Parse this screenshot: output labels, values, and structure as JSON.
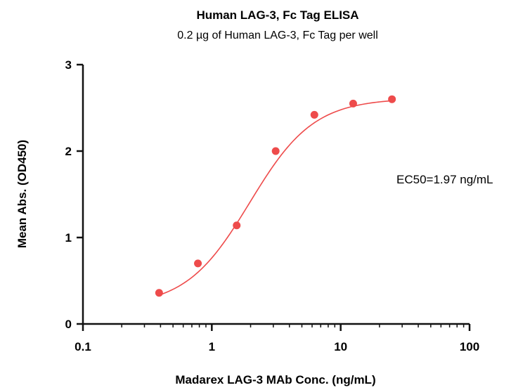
{
  "chart_data": {
    "type": "scatter",
    "title": "Human LAG-3, Fc Tag ELISA",
    "subtitle": "0.2 µg of Human LAG-3, Fc Tag per well",
    "xlabel": "Madarex LAG-3 MAb Conc. (ng/mL)",
    "ylabel": "Mean Abs. (OD450)",
    "x_scale": "log",
    "xlim": [
      0.1,
      100
    ],
    "ylim": [
      0,
      3
    ],
    "x_ticks": [
      0.1,
      1,
      10,
      100
    ],
    "x_tick_labels": [
      "0.1",
      "1",
      "10",
      "100"
    ],
    "y_ticks": [
      0,
      1,
      2,
      3
    ],
    "y_tick_labels": [
      "0",
      "1",
      "2",
      "3"
    ],
    "grid": false,
    "series": [
      {
        "color": "#ee4b4b",
        "x": [
          0.39,
          0.78,
          1.56,
          3.13,
          6.25,
          12.5,
          25
        ],
        "y": [
          0.36,
          0.7,
          1.14,
          2.0,
          2.42,
          2.55,
          2.6
        ],
        "fit": {
          "model": "4PL",
          "bottom": 0.2,
          "top": 2.61,
          "ec50": 1.97,
          "hill": 1.75,
          "x_range": [
            0.39,
            25
          ]
        }
      }
    ],
    "annotations": [
      {
        "text": "EC50=1.97 ng/mL"
      }
    ]
  }
}
